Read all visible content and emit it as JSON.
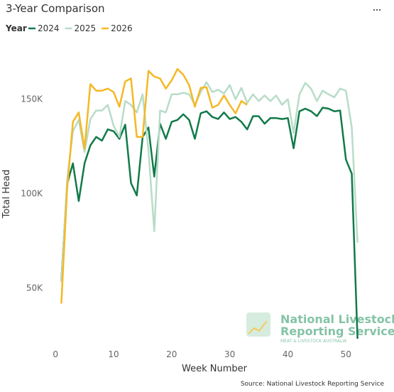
{
  "chart_data": {
    "type": "line",
    "title": "3-Year Comparison",
    "legend_title": "Year",
    "x_label": "Week Number",
    "y_label": "Total Head",
    "source": "Source: National Livestock Reporting Service",
    "logo": {
      "line1": "National Livestock",
      "line2": "Reporting Service",
      "line3": "MEAT & LIVESTOCK AUSTRALIA"
    },
    "x": [
      1,
      2,
      3,
      4,
      5,
      6,
      7,
      8,
      9,
      10,
      11,
      12,
      13,
      14,
      15,
      16,
      17,
      18,
      19,
      20,
      21,
      22,
      23,
      24,
      25,
      26,
      27,
      28,
      29,
      30,
      31,
      32,
      33,
      34,
      35,
      36,
      37,
      38,
      39,
      40,
      41,
      42,
      43,
      44,
      45,
      46,
      47,
      48,
      49,
      50,
      51,
      52
    ],
    "xlim": [
      -1,
      54
    ],
    "xticks": [
      0,
      10,
      20,
      30,
      40,
      50
    ],
    "ylim": [
      20000,
      180000
    ],
    "yticks": [
      {
        "value": 50000,
        "label": "50K"
      },
      {
        "value": 100000,
        "label": "100K"
      },
      {
        "value": 150000,
        "label": "150K"
      }
    ],
    "grid": false,
    "series": [
      {
        "name": "2024",
        "color": "#117a4a",
        "values": [
          54000,
          105000,
          116000,
          96000,
          116000,
          125500,
          130000,
          128000,
          134000,
          133000,
          129000,
          136500,
          105600,
          99000,
          130000,
          135000,
          109000,
          137000,
          129000,
          138000,
          139000,
          142000,
          139000,
          129000,
          142500,
          143600,
          140600,
          139500,
          143000,
          139500,
          140600,
          138000,
          134000,
          141000,
          141000,
          137000,
          140000,
          140000,
          139500,
          140000,
          124000,
          143600,
          145000,
          143600,
          141000,
          145500,
          145000,
          143600,
          144000,
          118000,
          110500,
          23000
        ]
      },
      {
        "name": "2025",
        "color": "#b8dcc8",
        "values": [
          53000,
          107000,
          133000,
          139000,
          122000,
          139500,
          144000,
          144000,
          147000,
          136000,
          130000,
          149000,
          147000,
          143000,
          152600,
          123000,
          80000,
          144000,
          143000,
          152600,
          152600,
          153400,
          152600,
          147000,
          153800,
          159000,
          153800,
          155000,
          153000,
          157500,
          150000,
          156000,
          148000,
          152600,
          149000,
          152000,
          149000,
          152000,
          147000,
          150000,
          132000,
          152600,
          158600,
          155600,
          149000,
          154500,
          152600,
          151000,
          155600,
          154500,
          135000,
          74000
        ]
      },
      {
        "name": "2026",
        "color": "#f5b825",
        "values": [
          41700,
          102000,
          138000,
          143000,
          123700,
          158000,
          154500,
          154500,
          155600,
          153800,
          146000,
          159400,
          161000,
          130000,
          130000,
          165000,
          162000,
          161000,
          155600,
          160000,
          166000,
          163000,
          157500,
          146000,
          156000,
          156400,
          145500,
          147000,
          152000,
          147000,
          142500,
          149000,
          147000,
          null,
          null,
          null,
          null,
          null,
          null,
          null,
          null,
          null,
          null,
          null,
          null,
          null,
          null,
          null,
          null,
          null,
          null,
          null
        ]
      }
    ]
  }
}
